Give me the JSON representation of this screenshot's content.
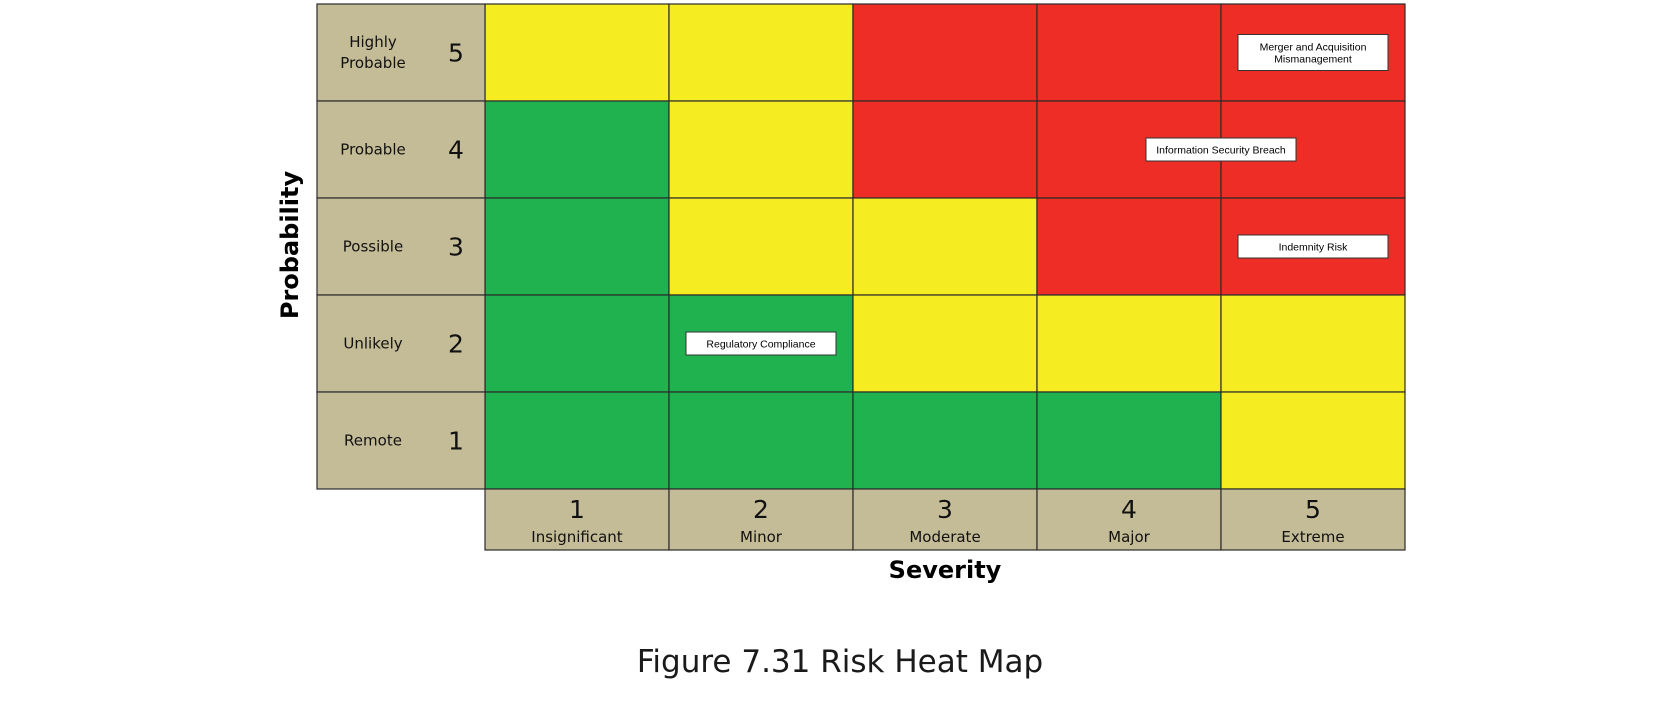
{
  "caption": "Figure 7.31 Risk Heat Map",
  "colors": {
    "green": "#1fb24f",
    "yellow": "#f5ec22",
    "red": "#ee2e26",
    "label_bg": "#c4bb97",
    "grid": "#2b2b2b"
  },
  "chart_data": {
    "type": "heatmap",
    "title": "",
    "xlabel": "Severity",
    "ylabel": "Probability",
    "x_levels": [
      {
        "value": 1,
        "label": "Insignificant"
      },
      {
        "value": 2,
        "label": "Minor"
      },
      {
        "value": 3,
        "label": "Moderate"
      },
      {
        "value": 4,
        "label": "Major"
      },
      {
        "value": 5,
        "label": "Extreme"
      }
    ],
    "y_levels": [
      {
        "value": 5,
        "label": [
          "Highly",
          "Probable"
        ]
      },
      {
        "value": 4,
        "label": [
          "Probable"
        ]
      },
      {
        "value": 3,
        "label": [
          "Possible"
        ]
      },
      {
        "value": 2,
        "label": [
          "Unlikely"
        ]
      },
      {
        "value": 1,
        "label": [
          "Remote"
        ]
      }
    ],
    "cells": [
      [
        "yellow",
        "yellow",
        "red",
        "red",
        "red"
      ],
      [
        "green",
        "yellow",
        "red",
        "red",
        "red"
      ],
      [
        "green",
        "yellow",
        "yellow",
        "red",
        "red"
      ],
      [
        "green",
        "green",
        "yellow",
        "yellow",
        "yellow"
      ],
      [
        "green",
        "green",
        "green",
        "green",
        "yellow"
      ]
    ],
    "risks": [
      {
        "label": [
          "Merger and Acquisition",
          "Mismanagement"
        ],
        "severity": 5,
        "probability": 5
      },
      {
        "label": [
          "Information Security Breach"
        ],
        "severity": 4.5,
        "probability": 4
      },
      {
        "label": [
          "Indemnity Risk"
        ],
        "severity": 5,
        "probability": 3
      },
      {
        "label": [
          "Regulatory Compliance"
        ],
        "severity": 2,
        "probability": 2
      }
    ]
  }
}
